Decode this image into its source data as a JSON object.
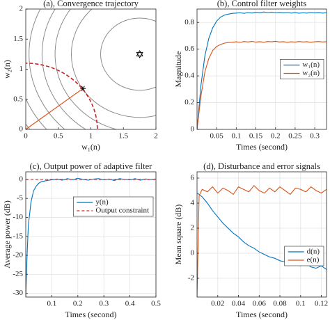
{
  "chart_data": [
    {
      "type": "contour",
      "title": "(a), Convergence trajectory",
      "x_label": "w₁(n)",
      "y_label": "w₂(n)",
      "xlim": [
        0,
        2
      ],
      "ylim": [
        0,
        2
      ],
      "xticks": [
        0,
        0.5,
        1,
        1.5,
        2
      ],
      "yticks": [
        0,
        0.5,
        1,
        1.5,
        2
      ],
      "grid": false,
      "contour_center": [
        1.75,
        1.25
      ],
      "contour_radii": [
        0.6,
        1.05,
        1.3,
        1.5,
        1.7,
        1.9,
        2.1,
        2.3
      ],
      "contour_color": "#8c8c8c",
      "constraint_radius": 1.1,
      "constraint_color": "#cc1f1f",
      "trajectory": {
        "x": [
          0,
          0.88
        ],
        "y": [
          0,
          0.68
        ],
        "color": "#D95319"
      }
    },
    {
      "type": "line",
      "title": "(b), Control filter weights",
      "x_label": "Times (second)",
      "y_label": "Magnitude",
      "xlim": [
        0,
        0.33
      ],
      "ylim": [
        0,
        0.9
      ],
      "xticks": [
        0.05,
        0.1,
        0.15,
        0.2,
        0.25,
        0.3
      ],
      "yticks": [
        0,
        0.2,
        0.4,
        0.6,
        0.8
      ],
      "grid": true,
      "legend": "center right",
      "x": [
        0,
        0.01,
        0.02,
        0.03,
        0.04,
        0.05,
        0.06,
        0.07,
        0.08,
        0.09,
        0.1,
        0.11,
        0.12,
        0.13,
        0.14,
        0.15,
        0.16,
        0.17,
        0.18,
        0.19,
        0.2,
        0.21,
        0.22,
        0.23,
        0.24,
        0.25,
        0.26,
        0.27,
        0.28,
        0.29,
        0.3,
        0.31,
        0.32,
        0.33
      ],
      "series": [
        {
          "name": "w₁(n)",
          "color": "#0072BD",
          "values": [
            0,
            0.33,
            0.55,
            0.68,
            0.76,
            0.81,
            0.84,
            0.855,
            0.862,
            0.868,
            0.87,
            0.872,
            0.868,
            0.874,
            0.87,
            0.876,
            0.872,
            0.878,
            0.874,
            0.877,
            0.872,
            0.875,
            0.871,
            0.874,
            0.87,
            0.873,
            0.869,
            0.872,
            0.87,
            0.874,
            0.871,
            0.873,
            0.87,
            0.872
          ]
        },
        {
          "name": "w₂(n)",
          "color": "#D95319",
          "values": [
            0,
            0.25,
            0.43,
            0.53,
            0.59,
            0.62,
            0.635,
            0.645,
            0.65,
            0.652,
            0.655,
            0.651,
            0.657,
            0.654,
            0.658,
            0.653,
            0.656,
            0.652,
            0.657,
            0.655,
            0.659,
            0.654,
            0.656,
            0.652,
            0.655,
            0.653,
            0.657,
            0.654,
            0.656,
            0.652,
            0.655,
            0.657,
            0.654,
            0.656
          ]
        }
      ]
    },
    {
      "type": "line",
      "title": "(c), Output power of adaptive filter",
      "x_label": "Times (second)",
      "y_label": "Average power (dB)",
      "xlim": [
        0,
        0.5
      ],
      "ylim": [
        -31,
        2
      ],
      "xticks": [
        0.1,
        0.2,
        0.3,
        0.4,
        0.5
      ],
      "yticks": [
        -30,
        -25,
        -20,
        -15,
        -10,
        -5,
        0
      ],
      "grid": true,
      "legend": "upper right",
      "x": [
        0,
        0.005,
        0.01,
        0.02,
        0.03,
        0.04,
        0.05,
        0.06,
        0.08,
        0.1,
        0.12,
        0.14,
        0.16,
        0.18,
        0.2,
        0.22,
        0.24,
        0.26,
        0.28,
        0.3,
        0.32,
        0.34,
        0.36,
        0.38,
        0.4,
        0.42,
        0.44,
        0.46,
        0.48,
        0.5
      ],
      "series": [
        {
          "name": "y(n)",
          "color": "#0072BD",
          "values": [
            -31,
            -20,
            -12,
            -6,
            -3,
            -1.8,
            -1,
            -0.6,
            -0.3,
            -0.1,
            0.1,
            -0.2,
            0.2,
            -0.1,
            0.3,
            0,
            -0.2,
            0.1,
            0.2,
            -0.1,
            0.1,
            -0.3,
            0.2,
            0,
            -0.1,
            0.2,
            -0.2,
            0.1,
            0,
            0.1
          ]
        },
        {
          "name": "Output constraint",
          "color": "#d62728",
          "dashed": true,
          "x": [
            0,
            0.5
          ],
          "values": [
            0,
            0
          ]
        }
      ]
    },
    {
      "type": "line",
      "title": "(d), Disturbance and error signals",
      "x_label": "Times (second)",
      "y_label": "Mean square (dB)",
      "xlim": [
        0,
        0.125
      ],
      "ylim": [
        -3.5,
        6.5
      ],
      "xticks": [
        0.02,
        0.04,
        0.06,
        0.08,
        0.1,
        0.12
      ],
      "yticks": [
        -2,
        0,
        2,
        4,
        6
      ],
      "grid": true,
      "legend": "lower right",
      "x": [
        0,
        0.002,
        0.005,
        0.01,
        0.015,
        0.02,
        0.025,
        0.03,
        0.035,
        0.04,
        0.045,
        0.05,
        0.055,
        0.06,
        0.065,
        0.07,
        0.075,
        0.08,
        0.085,
        0.09,
        0.095,
        0.1,
        0.105,
        0.11,
        0.115,
        0.12,
        0.125
      ],
      "series": [
        {
          "name": "d(n)",
          "color": "#0072BD",
          "values": [
            4.8,
            4.7,
            4.5,
            4.0,
            3.4,
            2.9,
            2.4,
            2.0,
            1.6,
            1.3,
            0.9,
            0.6,
            0.4,
            0.1,
            -0.1,
            -0.3,
            -0.4,
            -0.6,
            -0.7,
            -0.6,
            -0.9,
            -1.0,
            -0.8,
            -1.1,
            -1.2,
            -1.0,
            -1.3
          ]
        },
        {
          "name": "e(n)",
          "color": "#D95319",
          "values": [
            -3.5,
            4.6,
            5.1,
            4.9,
            5.3,
            4.8,
            5.2,
            5.0,
            4.7,
            5.3,
            5.1,
            4.9,
            5.4,
            5.0,
            4.8,
            5.2,
            4.9,
            5.3,
            5.0,
            4.7,
            5.2,
            5.1,
            4.9,
            5.3,
            5.0,
            4.8,
            5.1
          ]
        }
      ]
    }
  ]
}
